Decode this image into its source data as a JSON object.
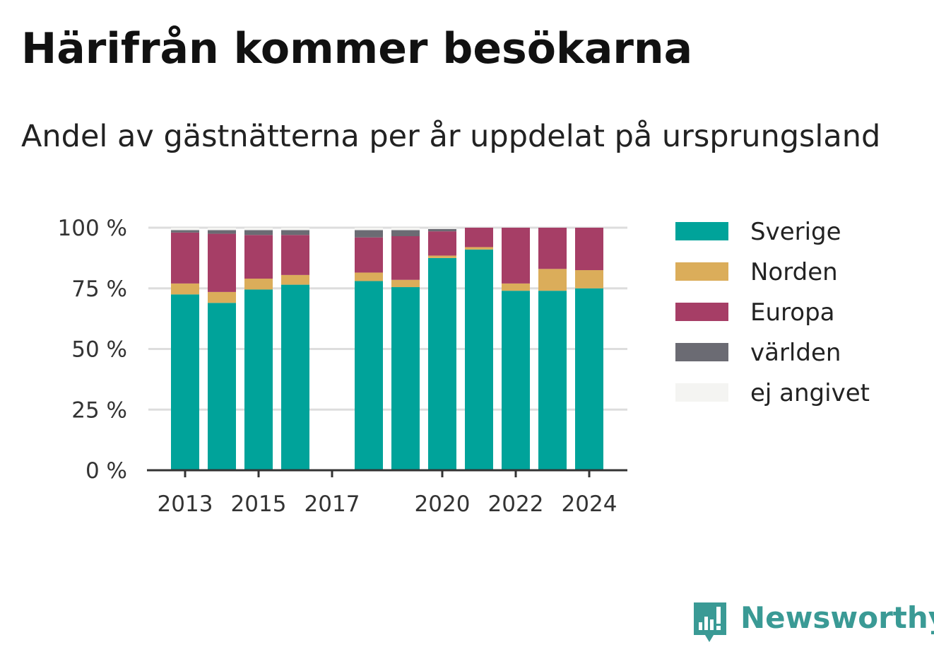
{
  "title": "Härifrån kommer besökarna",
  "subtitle": "Andel av gästnätterna per år uppdelat på ursprungsland",
  "brand": "Newsworthy",
  "colors": {
    "Sverige": "#00a39a",
    "Norden": "#dbad5a",
    "Europa": "#a63e66",
    "världen": "#6b6b73",
    "ej angivet": "#f4f4f2",
    "grid": "#dddddd",
    "axis": "#333333",
    "brand": "#3a9a95"
  },
  "chart_data": {
    "type": "bar",
    "stacked": true,
    "categories": [
      2013,
      2014,
      2015,
      2016,
      2017,
      2018,
      2019,
      2020,
      2021,
      2022,
      2023,
      2024
    ],
    "x_tick_labels": [
      "2013",
      "2015",
      "2017",
      "2020",
      "2022",
      "2024"
    ],
    "y_tick_labels": [
      "0 %",
      "25 %",
      "50 %",
      "75 %",
      "100 %"
    ],
    "ylim": [
      0,
      100
    ],
    "unit": "%",
    "grid": true,
    "legend_position": "right",
    "series": [
      {
        "name": "Sverige",
        "values": [
          72.5,
          69,
          74.5,
          76.5,
          null,
          78,
          75.5,
          87.5,
          91,
          74,
          74,
          75
        ]
      },
      {
        "name": "Norden",
        "values": [
          4.5,
          4.5,
          4.5,
          4,
          null,
          3.5,
          3,
          1,
          1,
          3,
          9,
          7.5
        ]
      },
      {
        "name": "Europa",
        "values": [
          21,
          24,
          18,
          16.5,
          null,
          14.5,
          18,
          10,
          8,
          23,
          17,
          17.5
        ]
      },
      {
        "name": "världen",
        "values": [
          1,
          1.5,
          2,
          2,
          null,
          3,
          2.5,
          1,
          0,
          0,
          0,
          0
        ]
      },
      {
        "name": "ej angivet",
        "values": [
          1,
          1,
          1,
          1,
          null,
          1,
          1,
          0.5,
          0,
          0,
          0,
          0
        ]
      }
    ]
  }
}
